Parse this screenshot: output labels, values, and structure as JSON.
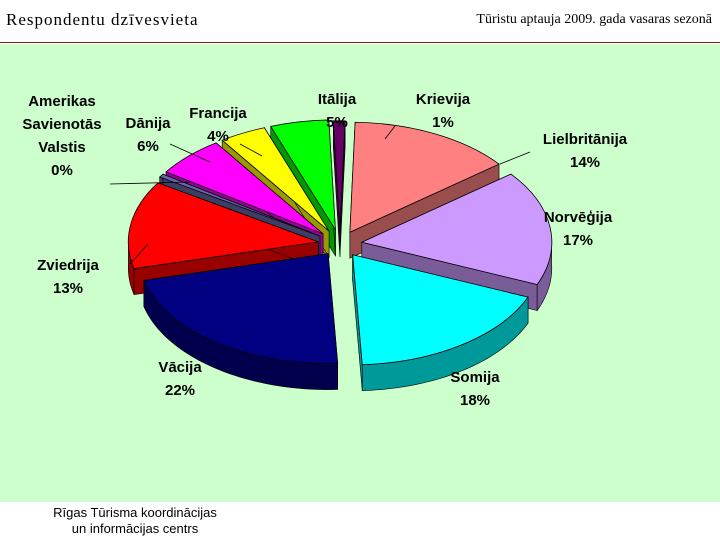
{
  "header": {
    "title": "Respondentu dzīvesvieta",
    "survey": "Tūristu aptauja 2009. gada vasaras sezonā"
  },
  "footer": {
    "line1": "Rīgas Tūrisma koordinācijas",
    "line2": "un informācijas centrs"
  },
  "colors": {
    "panel_bg": "#ccffcc",
    "header_rule": "#7a1a1a"
  },
  "chart_data": {
    "type": "pie",
    "style": "3d-exploded",
    "title": "",
    "slices": [
      {
        "label": "Krievija",
        "value": 1,
        "display": "1%",
        "color": "#660066"
      },
      {
        "label": "Lielbritānija",
        "value": 14,
        "display": "14%",
        "color": "#ff8080"
      },
      {
        "label": "Norvēģija",
        "value": 17,
        "display": "17%",
        "color": "#cc99ff"
      },
      {
        "label": "Somija",
        "value": 18,
        "display": "18%",
        "color": "#00ffff"
      },
      {
        "label": "Vācija",
        "value": 22,
        "display": "22%",
        "color": "#000080"
      },
      {
        "label": "Zviedrija",
        "value": 13,
        "display": "13%",
        "color": "#ff0000"
      },
      {
        "label": "Amerikas Savienotās Valstis",
        "label_lines": [
          "Amerikas",
          "Savienotās",
          "Valstis"
        ],
        "value": 0.5,
        "display": "0%",
        "color": "#6666aa"
      },
      {
        "label": "Dānija",
        "value": 6,
        "display": "6%",
        "color": "#ff00ff"
      },
      {
        "label": "Francija",
        "value": 4,
        "display": "4%",
        "color": "#ffff00"
      },
      {
        "label": "Itālija",
        "value": 5,
        "display": "5%",
        "color": "#00ff00"
      }
    ]
  }
}
